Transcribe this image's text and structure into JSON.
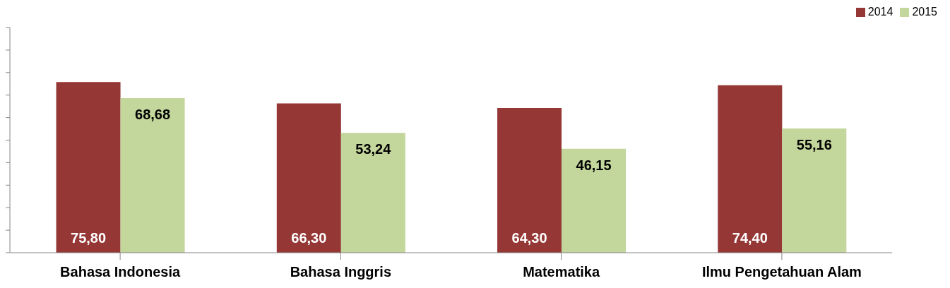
{
  "chart_data": {
    "type": "bar",
    "categories": [
      "Bahasa Indonesia",
      "Bahasa Inggris",
      "Matematika",
      "Ilmu Pengetahuan Alam"
    ],
    "series": [
      {
        "name": "2014",
        "color": "#953735",
        "values": [
          75.8,
          66.3,
          64.3,
          74.4
        ],
        "value_labels": [
          "75,80",
          "66,30",
          "64,30",
          "74,40"
        ]
      },
      {
        "name": "2015",
        "color": "#c3d69b",
        "values": [
          68.68,
          53.24,
          46.15,
          55.16
        ],
        "value_labels": [
          "68,68",
          "53,24",
          "46,15",
          "55,16"
        ]
      }
    ],
    "ylim": [
      0,
      100
    ],
    "yticks": [
      0,
      10,
      20,
      30,
      40,
      50,
      60,
      70,
      80,
      90,
      100
    ],
    "tick_labels": "x",
    "grid": false,
    "legend": "top right"
  }
}
